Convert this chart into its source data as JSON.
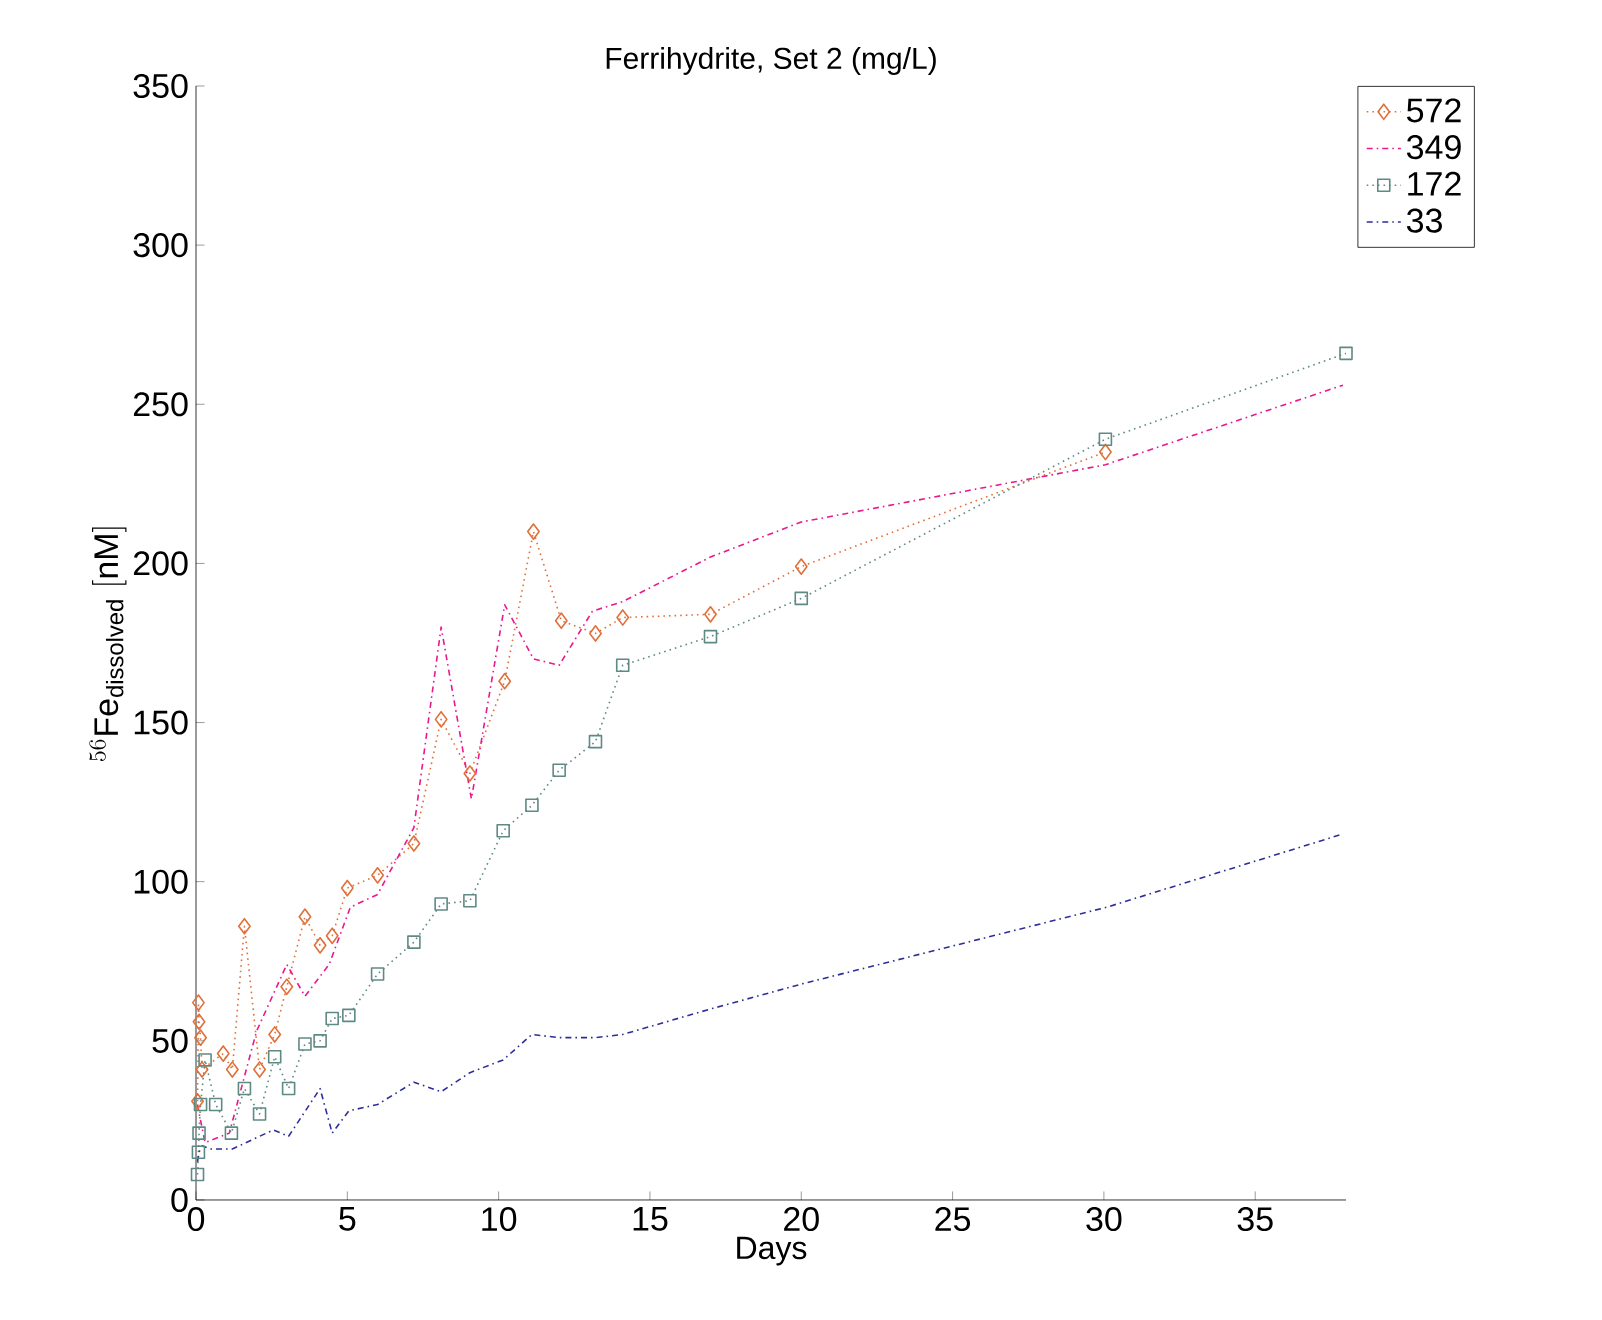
{
  "chart_data": {
    "type": "line",
    "title": "Ferrihydrite, Set 2 (mg/L)",
    "xlabel": "Days",
    "ylabel": "^{56}\\mathrm{Fe}_{\\mathrm{dissolved}}\\ [\\mathrm{nM}]",
    "xlim": [
      0,
      38
    ],
    "ylim": [
      0,
      350
    ],
    "xticks": [
      0,
      5,
      10,
      15,
      20,
      25,
      30,
      35
    ],
    "yticks": [
      0,
      50,
      100,
      150,
      200,
      250,
      300,
      350
    ],
    "grid": false,
    "legend": "top right",
    "series": [
      {
        "name": "572",
        "color": "#e0703a",
        "marker": "diamond",
        "line_style": "dotted",
        "x": [
          0.05,
          0.08,
          0.1,
          0.15,
          0.2,
          0.9,
          1.2,
          1.6,
          2.1,
          2.6,
          3.0,
          3.6,
          4.1,
          4.5,
          5.0,
          6.0,
          7.2,
          8.1,
          9.05,
          10.2,
          11.15,
          12.07,
          13.2,
          14.1,
          17.0,
          20.0,
          30.05
        ],
        "values": [
          31,
          62,
          56,
          51,
          41,
          46,
          41,
          86,
          41,
          52,
          67,
          89,
          80,
          83,
          98,
          102,
          112,
          151,
          134,
          163,
          210,
          182,
          178,
          183,
          184,
          199,
          235
        ]
      },
      {
        "name": "349",
        "color": "#e8198c",
        "marker": "none",
        "line_style": "dashdot",
        "x": [
          0.05,
          0.15,
          0.3,
          1.1,
          2.0,
          3.0,
          3.6,
          4.4,
          5.1,
          6.0,
          7.2,
          8.1,
          9.1,
          10.2,
          11.15,
          12.0,
          13.1,
          14.1,
          17.0,
          20.0,
          30.05,
          37.9
        ],
        "values": [
          30,
          25,
          18,
          21,
          53,
          74,
          64,
          74,
          92,
          96,
          117,
          180,
          126,
          187,
          170,
          168,
          185,
          188,
          202,
          213,
          231,
          256
        ]
      },
      {
        "name": "172",
        "color": "#5f8a84",
        "marker": "square",
        "line_style": "dotted",
        "x": [
          0.05,
          0.08,
          0.1,
          0.15,
          0.3,
          0.65,
          1.17,
          1.6,
          2.1,
          2.6,
          3.06,
          3.6,
          4.1,
          4.5,
          5.05,
          6.0,
          7.2,
          8.1,
          9.05,
          10.15,
          11.1,
          12.0,
          13.2,
          14.1,
          17.0,
          20.0,
          30.05,
          38.0
        ],
        "values": [
          8,
          15,
          21,
          30,
          44,
          30,
          21,
          35,
          27,
          45,
          35,
          49,
          50,
          57,
          58,
          71,
          81,
          93,
          94,
          116,
          124,
          135,
          144,
          168,
          177,
          189,
          239,
          266
        ]
      },
      {
        "name": "33",
        "color": "#2e2e9a",
        "marker": "none",
        "line_style": "dashdot",
        "x": [
          0.05,
          0.1,
          0.2,
          0.5,
          1.2,
          2.55,
          3.06,
          4.1,
          4.5,
          5.05,
          6.0,
          7.2,
          8.1,
          9.05,
          10.15,
          11.1,
          12.0,
          13.2,
          14.1,
          17.0,
          20.07,
          30.1,
          37.9
        ],
        "values": [
          12,
          15,
          17,
          16,
          16,
          22,
          20,
          35,
          21,
          28,
          30,
          37,
          34,
          40,
          44,
          52,
          51,
          51,
          52,
          60,
          68,
          92,
          115
        ]
      }
    ]
  }
}
